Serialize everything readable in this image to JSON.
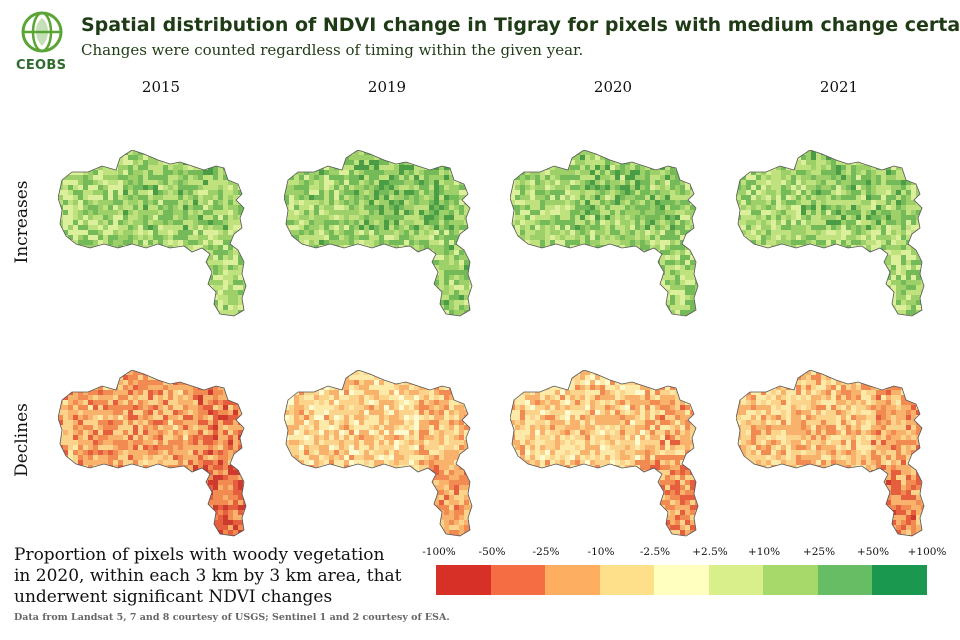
{
  "logo": {
    "text": "CEOBS",
    "icon": "globe-leaf-icon",
    "color": "#2e6b2c"
  },
  "title": "Spatial distribution of NDVI change in Tigray for pixels with medium change certainty",
  "subtitle": "Changes were counted regardless of timing within the given year.",
  "years": [
    "2015",
    "2019",
    "2020",
    "2021"
  ],
  "rows": [
    "Increases",
    "Declines"
  ],
  "map_intensity": {
    "Increases": {
      "2015": 0.45,
      "2019": 0.62,
      "2020": 0.55,
      "2021": 0.48
    },
    "Declines": {
      "2015": 0.75,
      "2019": 0.22,
      "2020": 0.3,
      "2021": 0.4
    }
  },
  "legend": {
    "caption": "Proportion of pixels with woody vegetation in 2020, within each 3 km by 3 km area, that underwent significant NDVI changes",
    "ticks": [
      "-100%",
      "-50%",
      "-25%",
      "-10%",
      "-2.5%",
      "+2.5%",
      "+10%",
      "+25%",
      "+50%",
      "+100%"
    ],
    "colors": [
      "#d73027",
      "#f46d43",
      "#fdae61",
      "#fee08b",
      "#ffffbf",
      "#d9ef8b",
      "#a6d96a",
      "#66bd63",
      "#1a9850"
    ]
  },
  "source": "Data from Landsat 5, 7 and 8 courtesy of USGS; Sentinel 1 and 2 courtesy of ESA."
}
